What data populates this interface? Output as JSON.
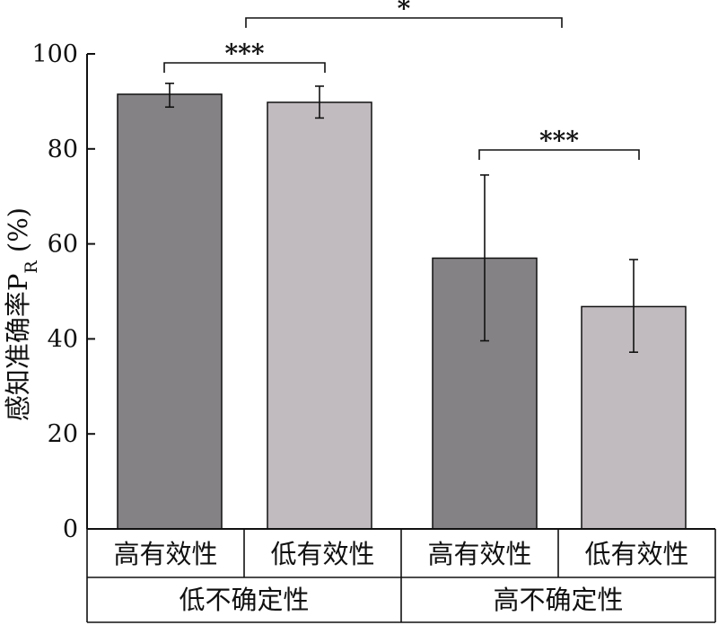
{
  "chart_data": {
    "type": "bar",
    "ylabel_main": "感知准确率P",
    "ylabel_sub": "R",
    "ylabel_unit": " (%)",
    "ylim": [
      0,
      100
    ],
    "yticks": [
      "0",
      "20",
      "40",
      "60",
      "80",
      "100"
    ],
    "grid": false,
    "bars": [
      {
        "label": "高有效性",
        "group": 0,
        "value": 91.5,
        "err_low": 88.8,
        "err_high": 93.8,
        "color": "#858285"
      },
      {
        "label": "低有效性",
        "group": 0,
        "value": 89.8,
        "err_low": 86.5,
        "err_high": 93.2,
        "color": "#c1bbbf"
      },
      {
        "label": "高有效性",
        "group": 1,
        "value": 57.0,
        "err_low": 39.6,
        "err_high": 74.5,
        "color": "#858285"
      },
      {
        "label": "低有效性",
        "group": 1,
        "value": 46.8,
        "err_low": 37.2,
        "err_high": 56.7,
        "color": "#c1bbbf"
      }
    ],
    "groups": [
      "低不确定性",
      "高不确定性"
    ],
    "significance": [
      {
        "from": 0,
        "to": 1,
        "label": "***"
      },
      {
        "from": 0,
        "to": 2,
        "label": "*"
      },
      {
        "from": 2,
        "to": 3,
        "label": "***"
      }
    ]
  }
}
